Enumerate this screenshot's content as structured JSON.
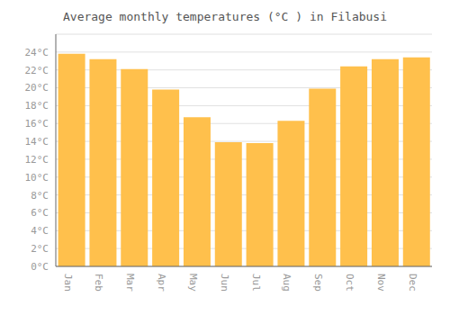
{
  "chart_data": {
    "type": "bar",
    "title": "Average monthly temperatures (°C ) in Filabusi",
    "categories": [
      "Jan",
      "Feb",
      "Mar",
      "Apr",
      "May",
      "Jun",
      "Jul",
      "Aug",
      "Sep",
      "Oct",
      "Nov",
      "Dec"
    ],
    "values": [
      23.8,
      23.2,
      22.1,
      19.8,
      16.7,
      13.9,
      13.8,
      16.3,
      19.9,
      22.4,
      23.2,
      23.4
    ],
    "color": "#FFC04C",
    "ylim": [
      0,
      26
    ],
    "yticks": [
      {
        "value": 0,
        "label": "0°C"
      },
      {
        "value": 2,
        "label": "2°C"
      },
      {
        "value": 4,
        "label": "4°C"
      },
      {
        "value": 6,
        "label": "6°C"
      },
      {
        "value": 8,
        "label": "8°C"
      },
      {
        "value": 10,
        "label": "10°C"
      },
      {
        "value": 12,
        "label": "12°C"
      },
      {
        "value": 14,
        "label": "14°C"
      },
      {
        "value": 16,
        "label": "16°C"
      },
      {
        "value": 18,
        "label": "18°C"
      },
      {
        "value": 20,
        "label": "20°C"
      },
      {
        "value": 22,
        "label": "22°C"
      },
      {
        "value": 24,
        "label": "24°C"
      }
    ],
    "grid": true
  }
}
